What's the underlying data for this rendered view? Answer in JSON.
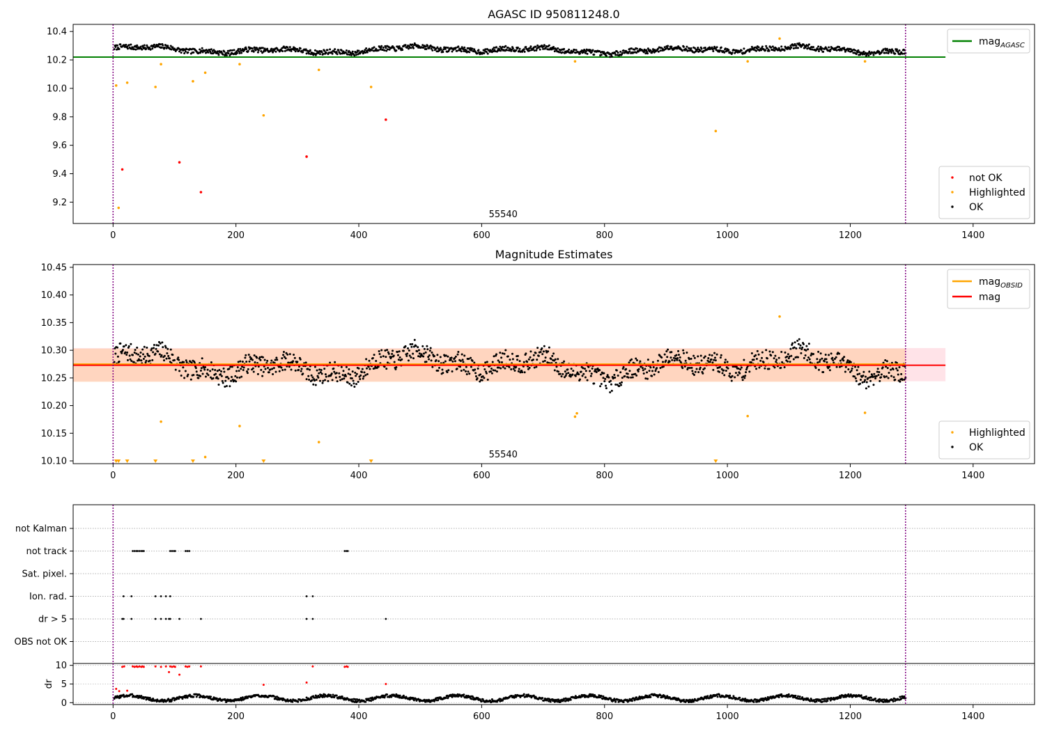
{
  "chart_data": [
    {
      "type": "scatter",
      "title": "AGASC ID 950811248.0",
      "annotation": "55540",
      "xlim": [
        -65,
        1500
      ],
      "ylim": [
        9.05,
        10.45
      ],
      "xticks": [
        0,
        200,
        400,
        600,
        800,
        1000,
        1200,
        1400
      ],
      "yticks": [
        9.2,
        9.4,
        9.6,
        9.8,
        10.0,
        10.2,
        10.4
      ],
      "ytick_labels": [
        "9.2",
        "9.4",
        "9.6",
        "9.8",
        "10.0",
        "10.2",
        "10.4"
      ],
      "vlines": [
        0,
        1290
      ],
      "hlines": [
        {
          "name": "mag",
          "subscript": "AGASC",
          "y": 10.22,
          "x": [
            -65,
            1355
          ],
          "color": "#008000"
        }
      ],
      "legend_lines": [
        {
          "name": "mag",
          "subscript": "AGASC",
          "color": "#008000"
        }
      ],
      "legend_markers": [
        {
          "name": "not OK",
          "color": "#ff0000"
        },
        {
          "name": "Highlighted",
          "color": "#ffa500"
        },
        {
          "name": "OK",
          "color": "#000000"
        }
      ],
      "series": [
        {
          "name": "not OK",
          "color": "#ff0000",
          "x": [
            15,
            108,
            143,
            315,
            444
          ],
          "y": [
            9.43,
            9.48,
            9.27,
            9.52,
            9.78
          ]
        },
        {
          "name": "Highlighted",
          "color": "#ffa500",
          "x": [
            5,
            9,
            23,
            69,
            78,
            130,
            150,
            206,
            245,
            335,
            420,
            752,
            981,
            1033,
            1085,
            1224
          ],
          "y": [
            10.02,
            9.16,
            10.04,
            10.01,
            10.17,
            10.05,
            10.11,
            10.17,
            9.81,
            10.13,
            10.01,
            10.19,
            9.7,
            10.19,
            10.35,
            10.19
          ]
        },
        {
          "name": "OK",
          "color": "#000000",
          "generated": true,
          "x_range": [
            2,
            1290
          ],
          "y_center": 10.27,
          "y_spread": 0.035
        }
      ]
    },
    {
      "type": "scatter",
      "title": "Magnitude Estimates",
      "annotation": "55540",
      "xlim": [
        -65,
        1500
      ],
      "ylim": [
        10.095,
        10.455
      ],
      "xticks": [
        0,
        200,
        400,
        600,
        800,
        1000,
        1200,
        1400
      ],
      "yticks": [
        10.1,
        10.15,
        10.2,
        10.25,
        10.3,
        10.35,
        10.4,
        10.45
      ],
      "ytick_labels": [
        "10.10",
        "10.15",
        "10.20",
        "10.25",
        "10.30",
        "10.35",
        "10.40",
        "10.45"
      ],
      "vlines": [
        0,
        1290
      ],
      "bands": [
        {
          "name": "mag band",
          "x": [
            -65,
            1355
          ],
          "y": [
            10.244,
            10.304
          ],
          "color": "#ffc0cb"
        },
        {
          "name": "mag OBSID band",
          "x": [
            -65,
            1290
          ],
          "y": [
            10.243,
            10.303
          ],
          "color": "#ffcba4"
        }
      ],
      "hlines": [
        {
          "name": "mag",
          "subscript": "OBSID",
          "y": 10.275,
          "x": [
            -65,
            1290
          ],
          "color": "#ffa500"
        },
        {
          "name": "mag",
          "y": 10.273,
          "x": [
            -65,
            1355
          ],
          "color": "#ff0000"
        }
      ],
      "legend_lines": [
        {
          "name": "mag",
          "subscript": "OBSID",
          "color": "#ffa500"
        },
        {
          "name": "mag",
          "color": "#ff0000"
        }
      ],
      "legend_markers": [
        {
          "name": "Highlighted",
          "color": "#ffa500"
        },
        {
          "name": "OK",
          "color": "#000000"
        }
      ],
      "series": [
        {
          "name": "Highlighted",
          "color": "#ffa500",
          "x": [
            78,
            150,
            206,
            335,
            752,
            755,
            1033,
            1085,
            1224
          ],
          "y": [
            10.171,
            10.107,
            10.163,
            10.134,
            10.18,
            10.186,
            10.181,
            10.361,
            10.187
          ]
        },
        {
          "name": "Highlighted below range",
          "color": "#ffa500",
          "marker": "triangle-down",
          "x": [
            5,
            9,
            23,
            69,
            130,
            245,
            420,
            981
          ],
          "y": [
            10.1,
            10.1,
            10.1,
            10.1,
            10.1,
            10.1,
            10.1,
            10.1
          ]
        },
        {
          "name": "OK",
          "color": "#000000",
          "generated": true,
          "x_range": [
            2,
            1290
          ],
          "y_center": 10.273,
          "y_spread": 0.035
        }
      ]
    },
    {
      "type": "scatter",
      "title": "",
      "xlim": [
        -65,
        1500
      ],
      "xticks": [
        0,
        200,
        400,
        600,
        800,
        1000,
        1200,
        1400
      ],
      "vlines": [
        0,
        1290
      ],
      "flag_rows": [
        "not Kalman",
        "not track",
        "Sat. pixel.",
        "Ion. rad.",
        "dr > 5",
        "OBS not OK"
      ],
      "flags": {
        "not Kalman": [],
        "not track": [
          32,
          35,
          38,
          40,
          43,
          46,
          48,
          50,
          93,
          96,
          99,
          101,
          118,
          121,
          124,
          377,
          380,
          382
        ],
        "Sat. pixel.": [],
        "Ion. rad.": [
          17,
          30,
          69,
          78,
          86,
          93,
          315,
          325
        ],
        "dr > 5": [
          15,
          17,
          30,
          69,
          78,
          86,
          91,
          93,
          108,
          143,
          315,
          325,
          444
        ],
        "OBS not OK": []
      },
      "dr_axis": {
        "ylabel": "dr",
        "ylim": [
          -0.5,
          10.5
        ],
        "yticks": [
          0,
          5,
          10
        ],
        "ytick_labels": [
          "0",
          "5",
          "10"
        ],
        "red_points": {
          "x": [
            5,
            10,
            15,
            18,
            23,
            32,
            35,
            38,
            40,
            43,
            46,
            48,
            50,
            69,
            78,
            86,
            91,
            93,
            96,
            99,
            101,
            108,
            118,
            121,
            124,
            143,
            245,
            315,
            325,
            377,
            380,
            382,
            444
          ],
          "y": [
            3.7,
            3.1,
            9.6,
            9.7,
            3.2,
            9.7,
            9.6,
            9.7,
            9.6,
            9.7,
            9.6,
            9.7,
            9.6,
            9.7,
            9.6,
            9.7,
            8.2,
            9.7,
            9.6,
            9.7,
            9.6,
            7.5,
            9.7,
            9.6,
            9.7,
            9.7,
            4.8,
            5.4,
            9.7,
            9.6,
            9.7,
            9.6,
            5.0
          ]
        },
        "black_points": {
          "generated": true,
          "x_range": [
            2,
            1290
          ],
          "y_center": 1.2,
          "y_spread": 0.8
        }
      }
    }
  ]
}
